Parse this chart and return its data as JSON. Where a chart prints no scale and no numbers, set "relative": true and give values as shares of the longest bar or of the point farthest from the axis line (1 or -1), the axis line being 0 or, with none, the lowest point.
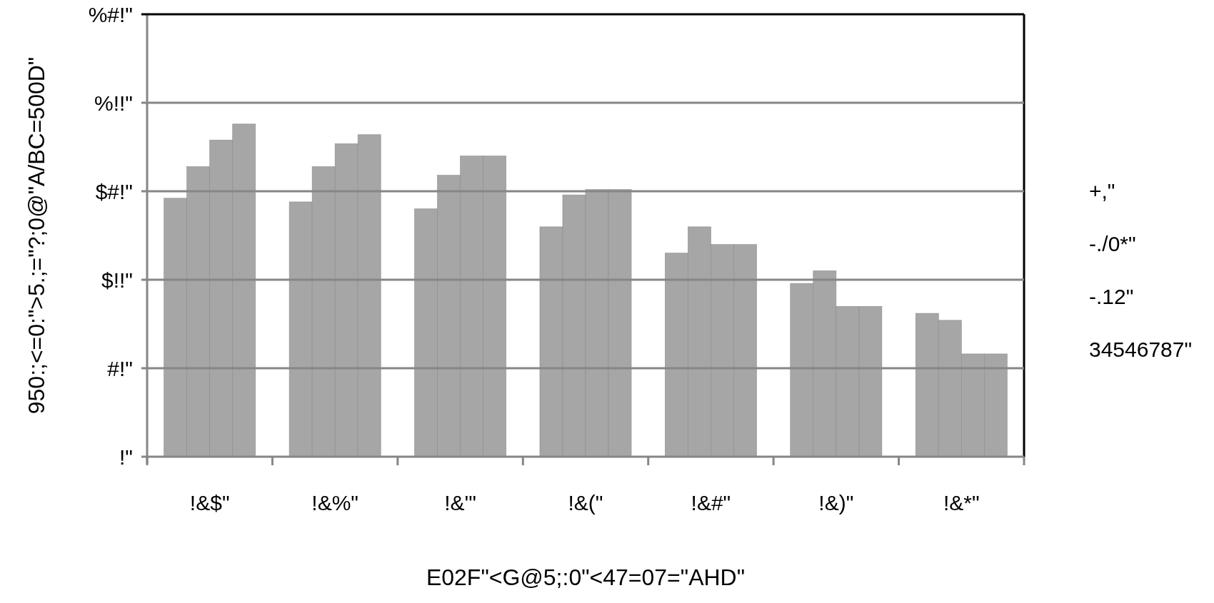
{
  "chart_data": {
    "type": "bar",
    "relative": true,
    "xlabel": "E02F\"<G@5;:0\"<47=07=\"AHD\"",
    "ylabel": "950:;<=0:\">5.;=\"?;0@\"A/BC=500D\"",
    "categories": [
      "!&$\"",
      "!&%\"",
      "!&'\"",
      "!&(\"",
      "!&#\"",
      "!&)\"",
      "!&*\""
    ],
    "series": [
      {
        "name": "+,\"",
        "color": "#a6a6a6",
        "values": [
          0.777,
          0.766,
          0.745,
          0.691,
          0.612,
          0.521,
          0.431
        ]
      },
      {
        "name": "-./0*\"",
        "color": "#a6a6a6",
        "values": [
          0.872,
          0.872,
          0.846,
          0.787,
          0.691,
          0.559,
          0.41
        ]
      },
      {
        "name": "-.12\"",
        "color": "#a6a6a6",
        "values": [
          0.952,
          0.941,
          0.904,
          0.803,
          0.638,
          0.452,
          0.309
        ]
      },
      {
        "name": "34546787\"",
        "color": "#a6a6a6",
        "values": [
          1,
          0.968,
          0.904,
          0.803,
          0.638,
          0.452,
          0.309
        ]
      }
    ],
    "ref_lines": [
      {
        "axis": "y",
        "value": 0.266,
        "label": "#!\"",
        "color": "#868686"
      },
      {
        "axis": "y",
        "value": 0.532,
        "label": "$!!\"",
        "color": "#868686"
      },
      {
        "axis": "y",
        "value": 0.798,
        "label": "$#!\"",
        "color": "#868686"
      },
      {
        "axis": "y",
        "value": 1.064,
        "label": "%!!\"",
        "color": "#868686"
      },
      {
        "axis": "y",
        "value": 1.33,
        "label": "%#!\"",
        "color": "#000000"
      }
    ],
    "annotations": [
      "!\""
    ],
    "legend": "right"
  }
}
